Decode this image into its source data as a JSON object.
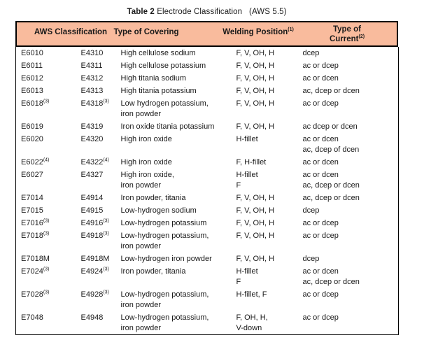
{
  "title": {
    "bold": "Table 2",
    "rest": " Electrode Classification   (AWS 5.5)"
  },
  "colors": {
    "header_bg": "#f9bb9d",
    "border": "#000000",
    "text": "#1a1a1a",
    "page_bg": "#ffffff"
  },
  "table": {
    "header": {
      "aws_classification": "AWS Classification",
      "type_of_covering": "Type of Covering",
      "welding_position": "Welding Position",
      "welding_position_sup": "(1)",
      "type_of_current_line1": "Type of",
      "type_of_current_line2": "Current",
      "type_of_current_sup": "(2)"
    },
    "rows": [
      {
        "aws": "E6010",
        "aws_sup": "",
        "iso": "E4310",
        "iso_sup": "",
        "covering": [
          "High cellulose sodium"
        ],
        "position": [
          "F, V, OH, H"
        ],
        "current": [
          "dcep"
        ]
      },
      {
        "aws": "E6011",
        "aws_sup": "",
        "iso": "E4311",
        "iso_sup": "",
        "covering": [
          "High cellulose potassium"
        ],
        "position": [
          "F, V, OH, H"
        ],
        "current": [
          "ac or dcep"
        ]
      },
      {
        "aws": "E6012",
        "aws_sup": "",
        "iso": "E4312",
        "iso_sup": "",
        "covering": [
          "High titania sodium"
        ],
        "position": [
          "F, V, OH, H"
        ],
        "current": [
          "ac or dcen"
        ]
      },
      {
        "aws": "E6013",
        "aws_sup": "",
        "iso": "E4313",
        "iso_sup": "",
        "covering": [
          "High titania potassium"
        ],
        "position": [
          "F, V, OH, H"
        ],
        "current": [
          "ac, dcep or dcen"
        ]
      },
      {
        "aws": "E6018",
        "aws_sup": "(3)",
        "iso": "E4318",
        "iso_sup": "(3)",
        "covering": [
          "Low hydrogen potassium,",
          "iron powder"
        ],
        "position": [
          "F, V, OH, H"
        ],
        "current": [
          "ac or dcep"
        ]
      },
      {
        "aws": "E6019",
        "aws_sup": "",
        "iso": "E4319",
        "iso_sup": "",
        "covering": [
          "Iron oxide titania potassium"
        ],
        "position": [
          "F, V, OH, H"
        ],
        "current": [
          "ac dcep or dcen"
        ]
      },
      {
        "aws": "E6020",
        "aws_sup": "",
        "iso": "E4320",
        "iso_sup": "",
        "covering": [
          "High iron oxide"
        ],
        "position": [
          "H-fillet"
        ],
        "current": [
          "ac or dcen",
          "ac, dcep of dcen"
        ]
      },
      {
        "aws": "E6022",
        "aws_sup": "(4)",
        "iso": "E4322",
        "iso_sup": "(4)",
        "covering": [
          "High iron oxide"
        ],
        "position": [
          "F, H-fillet"
        ],
        "current": [
          "ac or dcen"
        ]
      },
      {
        "aws": "E6027",
        "aws_sup": "",
        "iso": "E4327",
        "iso_sup": "",
        "covering": [
          "High iron oxide,",
          "iron powder"
        ],
        "position": [
          "H-fillet",
          "F"
        ],
        "current": [
          "ac or dcen",
          "ac, dcep or dcen"
        ]
      },
      {
        "aws": "E7014",
        "aws_sup": "",
        "iso": "E4914",
        "iso_sup": "",
        "covering": [
          "Iron powder, titania"
        ],
        "position": [
          "F, V, OH, H"
        ],
        "current": [
          "ac, dcep or dcen"
        ]
      },
      {
        "aws": "E7015",
        "aws_sup": "",
        "iso": "E4915",
        "iso_sup": "",
        "covering": [
          "Low-hydrogen sodium"
        ],
        "position": [
          "F, V, OH, H"
        ],
        "current": [
          "dcep"
        ]
      },
      {
        "aws": "E7016",
        "aws_sup": "(3)",
        "iso": "E4916",
        "iso_sup": "(3)",
        "covering": [
          "Low-hydrogen potassium"
        ],
        "position": [
          "F, V, OH, H"
        ],
        "current": [
          "ac or dcep"
        ]
      },
      {
        "aws": "E7018",
        "aws_sup": "(3)",
        "iso": "E4918",
        "iso_sup": "(3)",
        "covering": [
          "Low-hydrogen potassium,",
          "iron powder"
        ],
        "position": [
          "F, V, OH, H"
        ],
        "current": [
          "ac or dcep"
        ]
      },
      {
        "aws": "E7018M",
        "aws_sup": "",
        "iso": "E4918M",
        "iso_sup": "",
        "covering": [
          "Low-hydrogen iron powder"
        ],
        "position": [
          "F, V, OH, H"
        ],
        "current": [
          "dcep"
        ]
      },
      {
        "aws": "E7024",
        "aws_sup": "(3)",
        "iso": "E4924",
        "iso_sup": "(3)",
        "covering": [
          "Iron powder, titania"
        ],
        "position": [
          "H-fillet",
          "F"
        ],
        "current": [
          "ac or dcen",
          "ac, dcep or dcen"
        ]
      },
      {
        "aws": "E7028",
        "aws_sup": "(3)",
        "iso": "E4928",
        "iso_sup": "(3)",
        "covering": [
          "Low-hydrogen potassium,",
          "iron powder"
        ],
        "position": [
          "H-fillet, F"
        ],
        "current": [
          "ac or dcep"
        ]
      },
      {
        "aws": "E7048",
        "aws_sup": "",
        "iso": "E4948",
        "iso_sup": "",
        "covering": [
          "Low-hydrogen potassium,",
          "iron powder"
        ],
        "position": [
          "F, OH, H,",
          "V-down"
        ],
        "current": [
          "ac or dcep"
        ]
      }
    ]
  }
}
